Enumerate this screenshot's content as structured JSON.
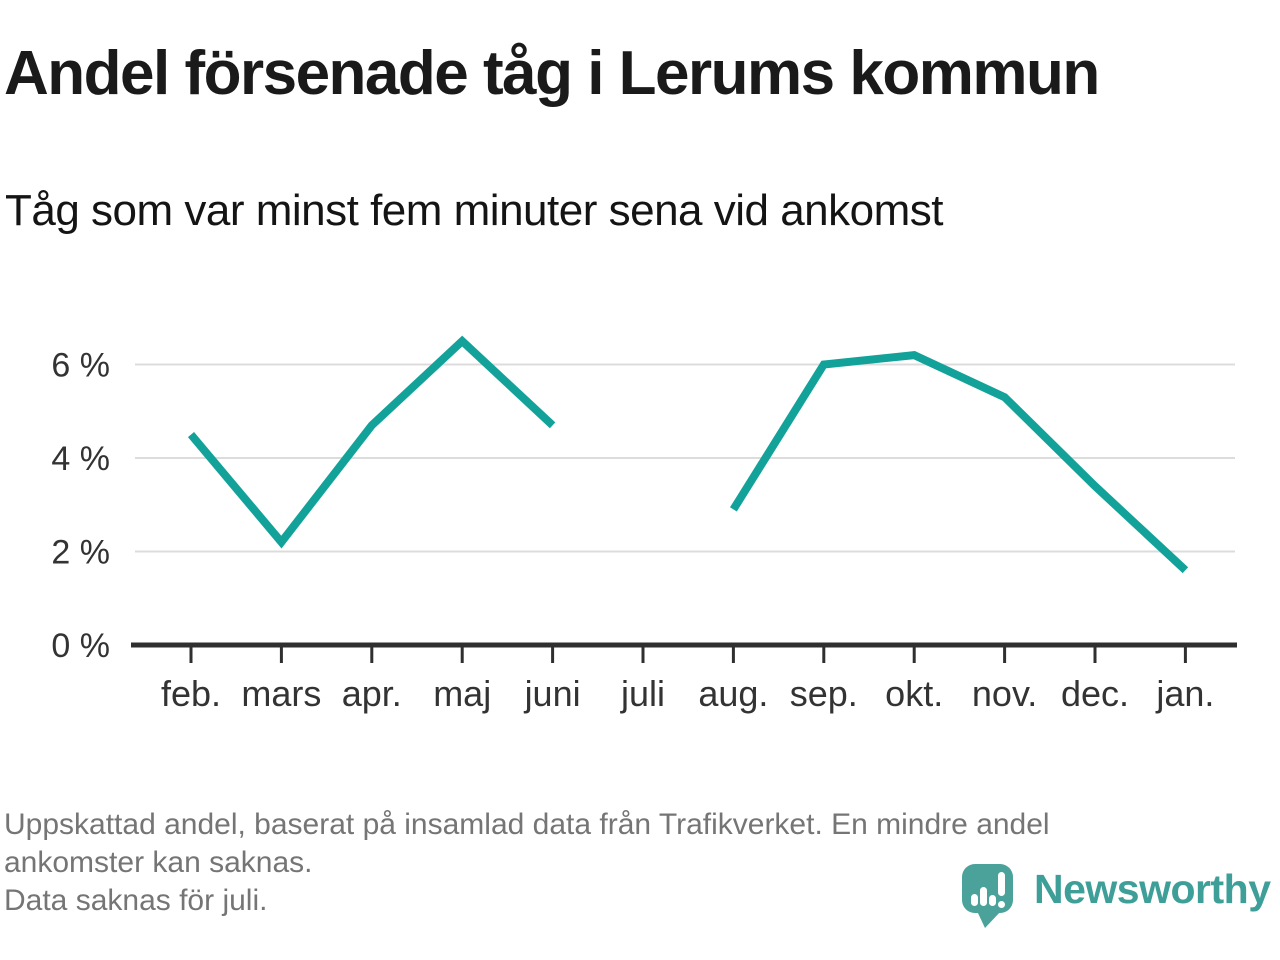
{
  "header": {
    "title": "Andel försenade tåg i Lerums kommun",
    "subtitle": "Tåg som var minst fem minuter sena vid ankomst"
  },
  "chart_data": {
    "type": "line",
    "title": "Andel försenade tåg i Lerums kommun",
    "subtitle": "Tåg som var minst fem minuter sena vid ankomst",
    "categories": [
      "feb.",
      "mars",
      "apr.",
      "maj",
      "juni",
      "juli",
      "aug.",
      "sep.",
      "okt.",
      "nov.",
      "dec.",
      "jan."
    ],
    "series": [
      {
        "name": "Andel försenade tåg",
        "values": [
          4.5,
          2.2,
          4.7,
          6.5,
          4.7,
          null,
          2.9,
          6.0,
          6.2,
          5.3,
          3.4,
          1.6
        ]
      }
    ],
    "unit": "%",
    "xlabel": "",
    "ylabel": "",
    "ylim": [
      0,
      6.9
    ],
    "y_ticks": [
      {
        "value": 0,
        "label": "0 %"
      },
      {
        "value": 2,
        "label": "2 %"
      },
      {
        "value": 4,
        "label": "4 %"
      },
      {
        "value": 6,
        "label": "6 %"
      }
    ],
    "grid": "horizontal gridlines on",
    "legend": "none",
    "missing_data": [
      "juli"
    ],
    "colors": {
      "line": "#13a29a",
      "gridline": "#dcdcdc",
      "axis": "#2f2f2f",
      "tick_label": "#333333"
    }
  },
  "footer": {
    "note_lines": [
      "Uppskattad andel, baserat på insamlad data från Trafikverket. En mindre andel",
      "ankomster kan saknas.",
      "Data saknas för juli."
    ]
  },
  "branding": {
    "name": "Newsworthy",
    "logo_icon": "speech-bubble-bar-chart-icon",
    "text_color": "#3e9f99",
    "bubble_color": "#4aa29b"
  }
}
